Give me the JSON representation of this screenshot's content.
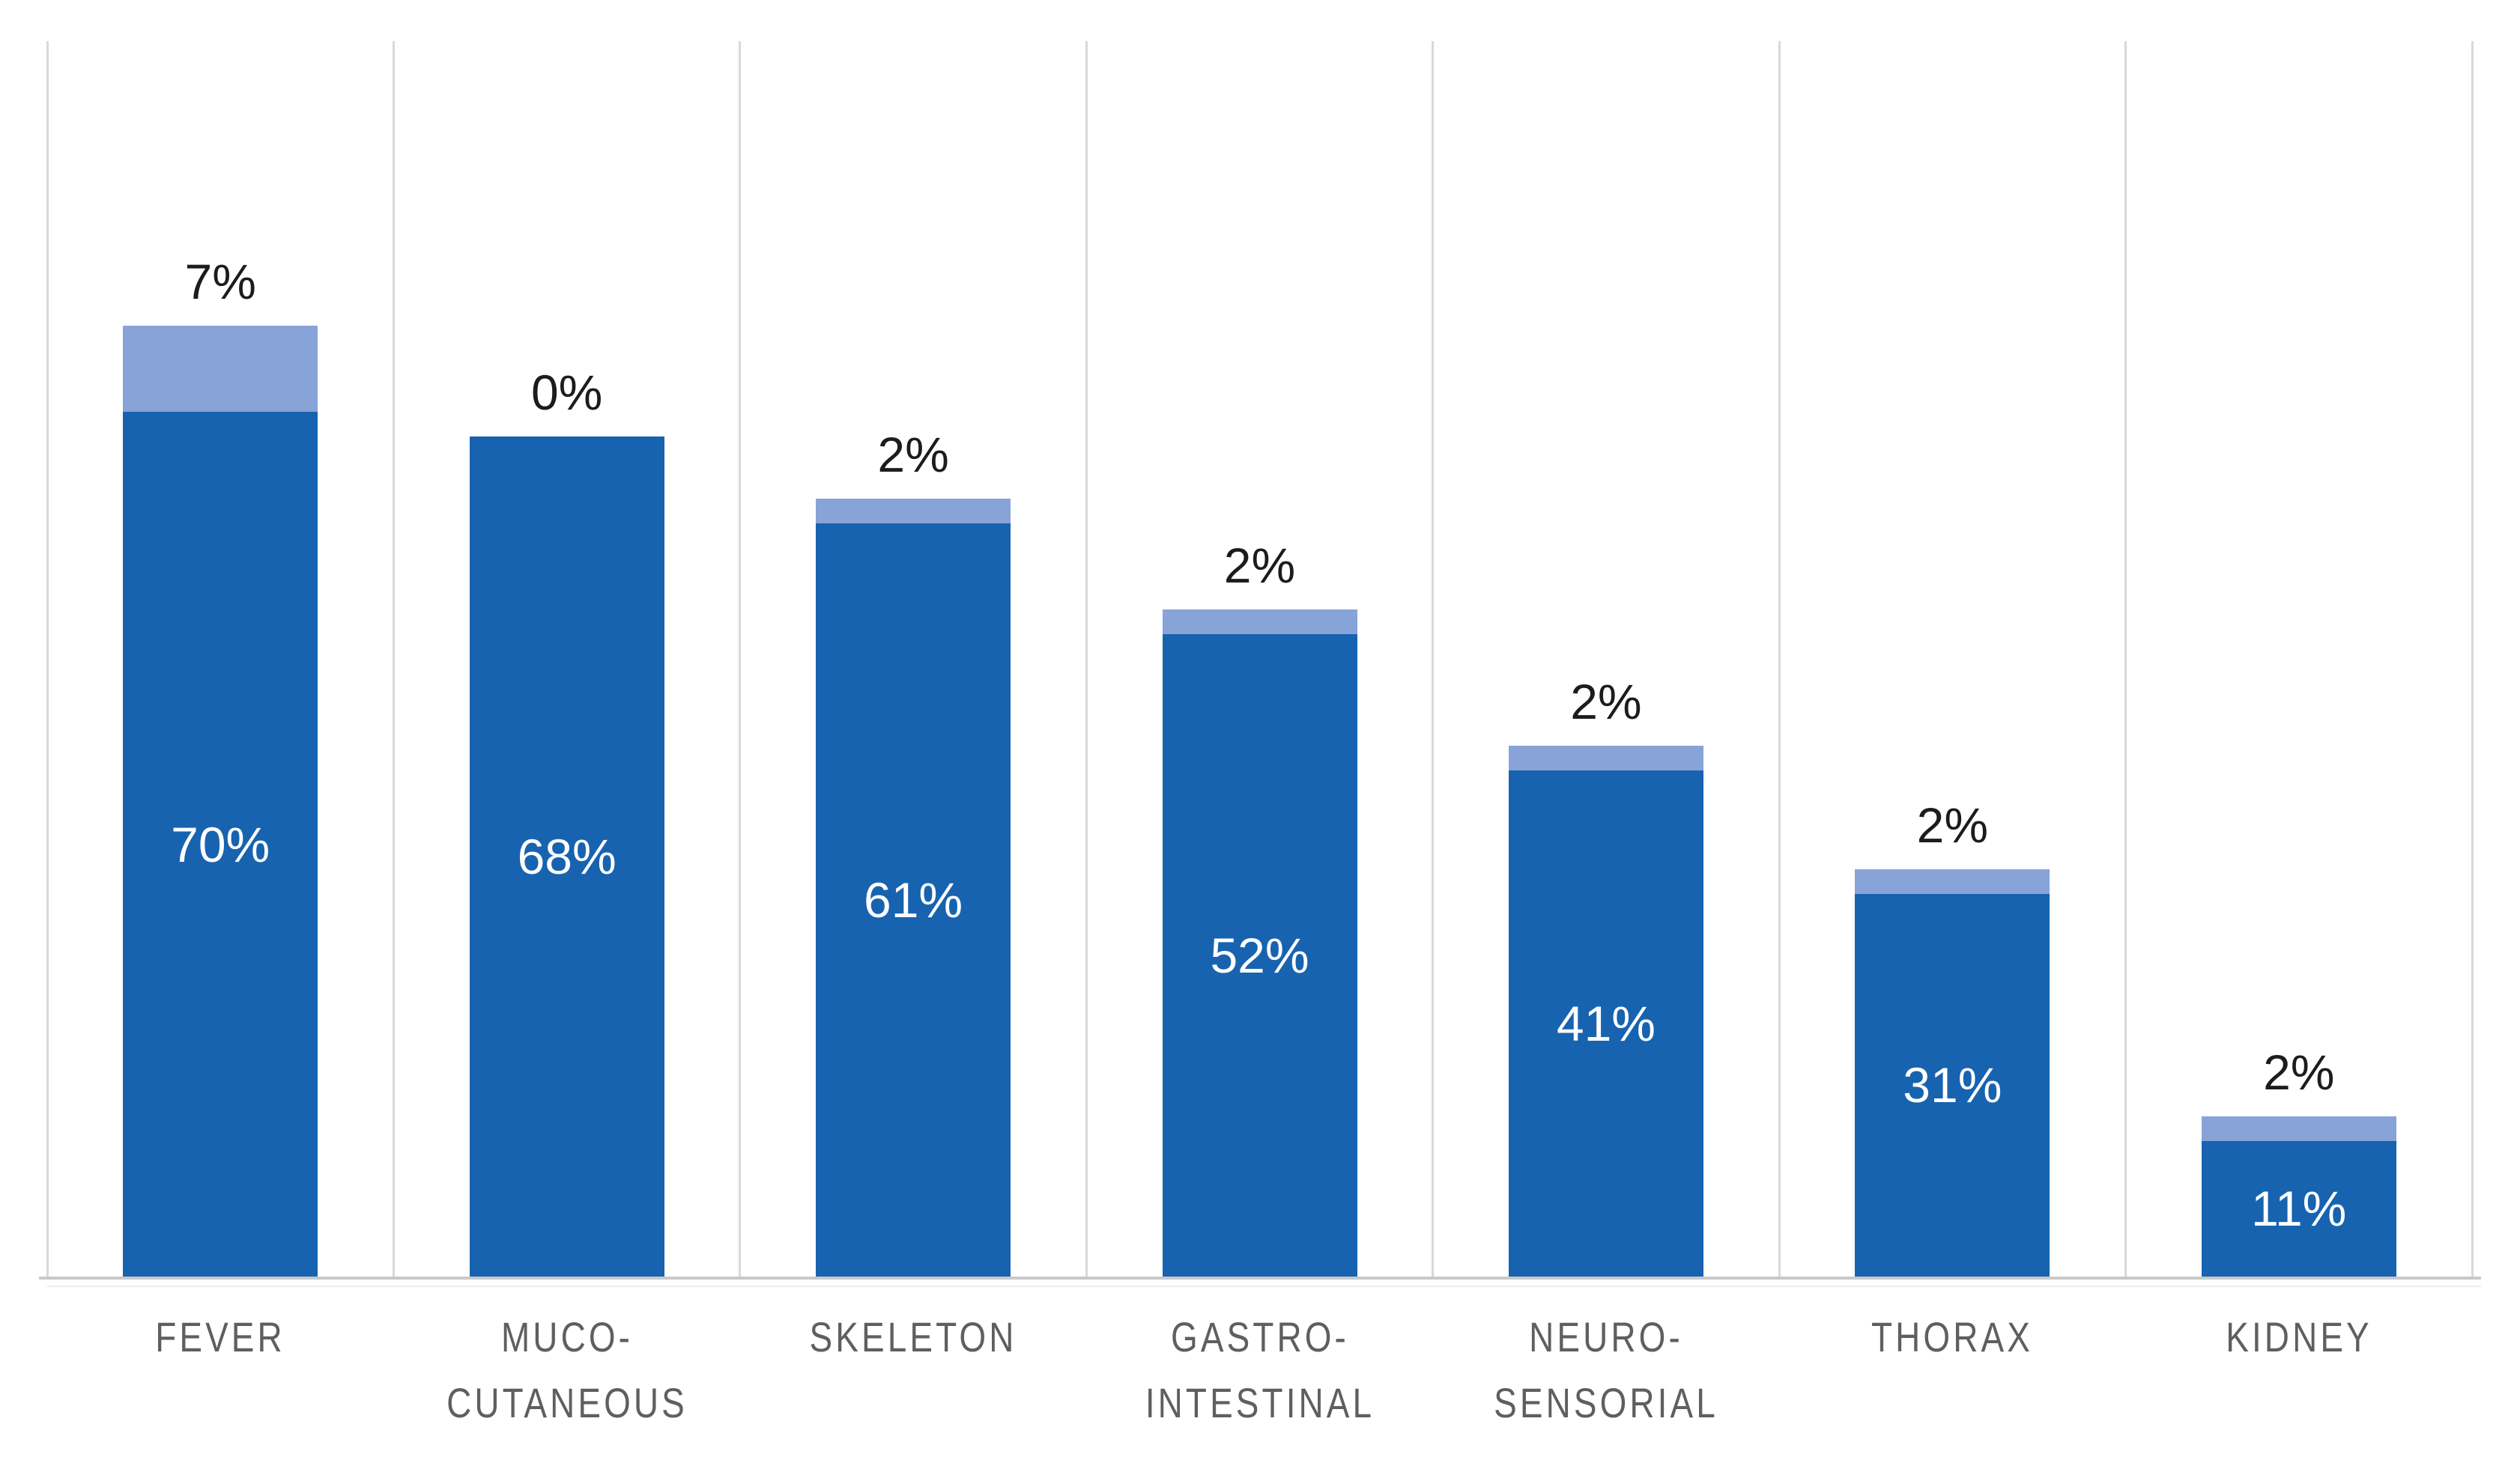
{
  "chart_data": {
    "type": "bar",
    "subtype": "stacked-column",
    "title": "",
    "xlabel": "",
    "ylabel": "",
    "ylim": [
      0,
      100
    ],
    "grid": {
      "vertical_column_separators": true,
      "horizontal_gridlines": false
    },
    "legend": "none",
    "categories": [
      "FEVER",
      "MUCO-CUTANEOUS",
      "SKELETON",
      "GASTRO-INTESTINAL",
      "NEURO-SENSORIAL",
      "THORAX",
      "KIDNEY"
    ],
    "category_label_lines": [
      [
        "FEVER"
      ],
      [
        "MUCO-",
        "CUTANEOUS"
      ],
      [
        "SKELETON"
      ],
      [
        "GASTRO-",
        "INTESTINAL"
      ],
      [
        "NEURO-",
        "SENSORIAL"
      ],
      [
        "THORAX"
      ],
      [
        "KIDNEY"
      ]
    ],
    "series": [
      {
        "name": "primary-segment",
        "color": "#1763B0",
        "values": [
          70,
          68,
          61,
          52,
          41,
          31,
          11
        ],
        "labels": [
          "70%",
          "68%",
          "61%",
          "52%",
          "41%",
          "31%",
          "11%"
        ],
        "label_placement": "inside-center-white"
      },
      {
        "name": "secondary-segment",
        "color": "#88A3D8",
        "values": [
          7,
          0,
          2,
          2,
          2,
          2,
          2
        ],
        "labels": [
          "7%",
          "0%",
          "2%",
          "2%",
          "2%",
          "2%",
          "2%"
        ],
        "label_placement": "above-bar-black"
      }
    ]
  },
  "style": {
    "background_color": "#FFFFFF",
    "primary_bar_color": "#1763B0",
    "secondary_bar_color": "#88A3D8",
    "gridline_color": "#D9D9D9",
    "baseline_color": "#C9C9C9",
    "baseline_echo_color": "#ECECEC",
    "category_label_color": "#5F5F5F",
    "above_label_color": "#1C1C1C",
    "inside_label_color": "#FFFFFF"
  }
}
